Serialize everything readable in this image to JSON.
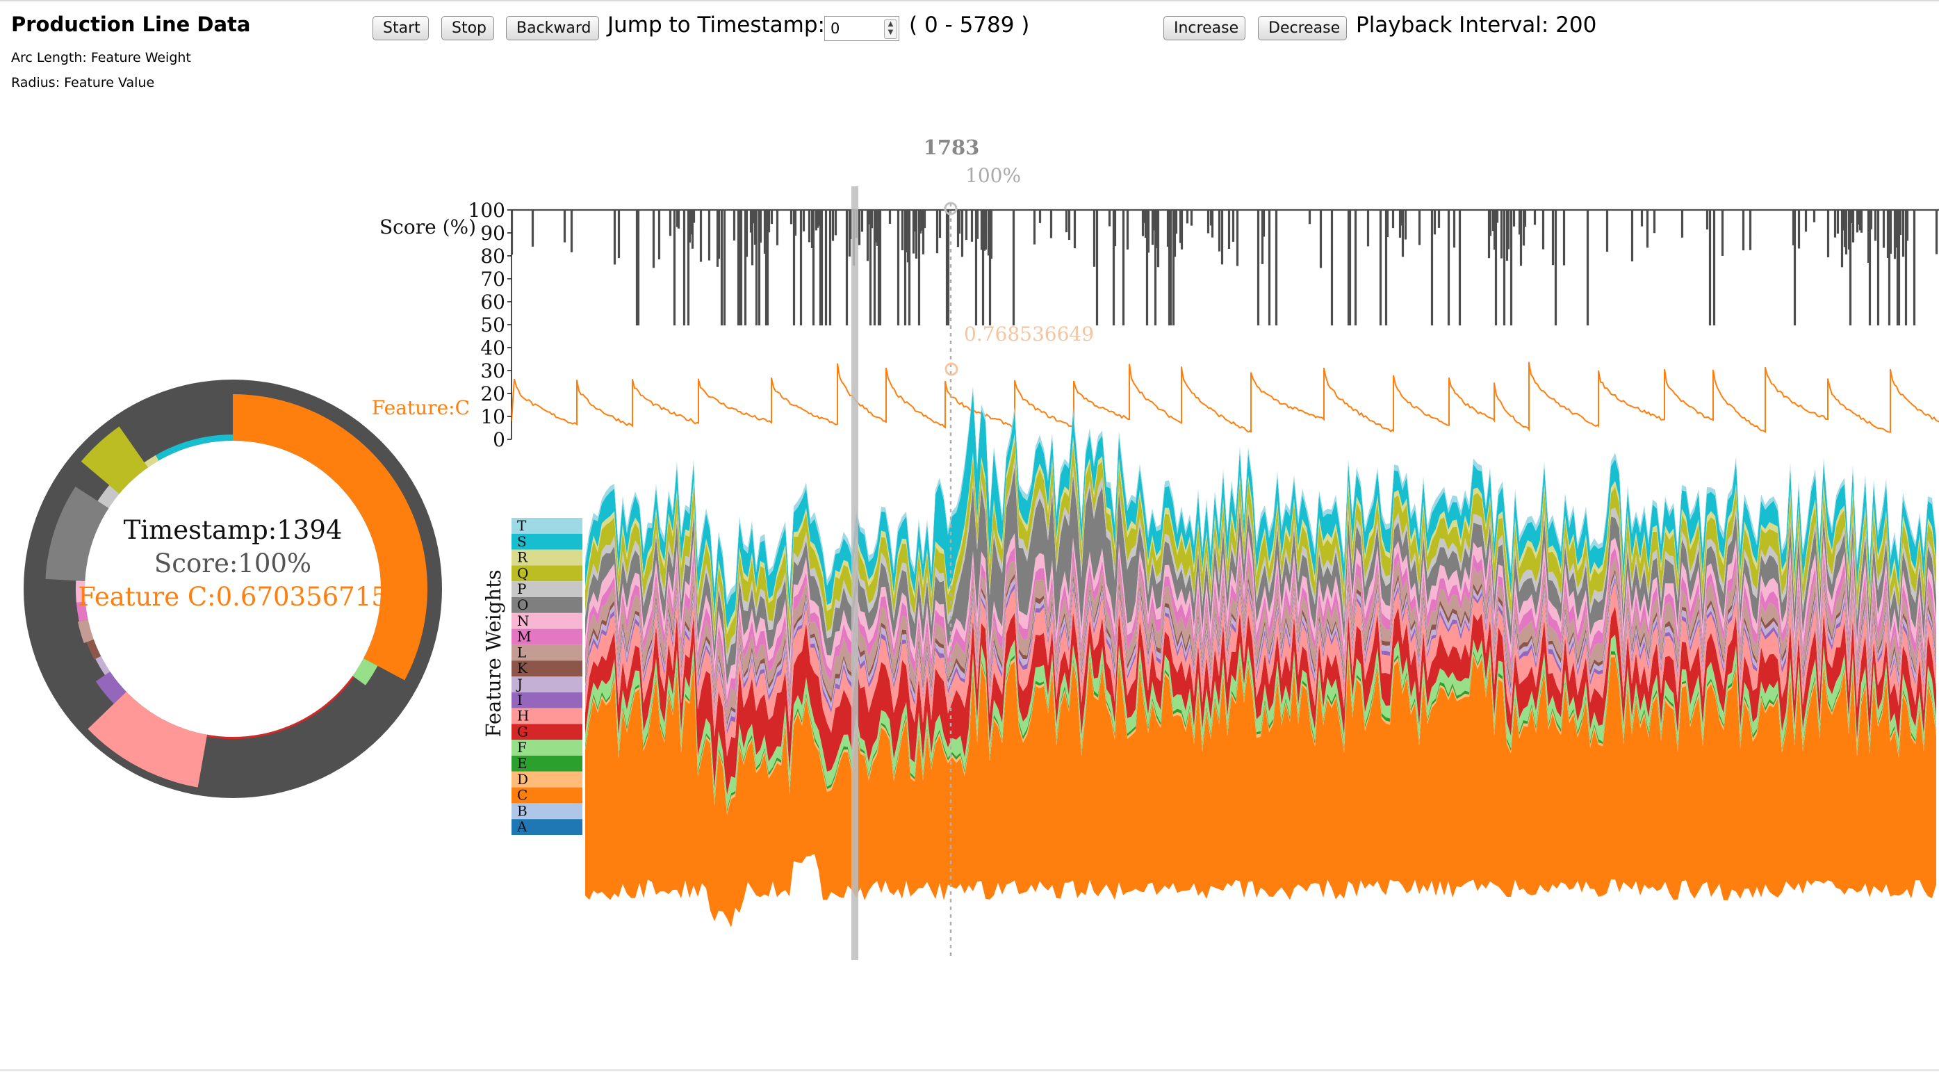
{
  "header": {
    "title": "Production Line Data",
    "arc_length_label": "Arc Length: Feature Weight",
    "radius_label": "Radius: Feature Value"
  },
  "controls": {
    "start_label": "Start",
    "stop_label": "Stop",
    "backward_label": "Backward",
    "jump_label": "Jump to Timestamp:",
    "jump_value": "0",
    "range_label": "( 0 - 5789 )",
    "increase_label": "Increase",
    "decrease_label": "Decrease",
    "interval_label": "Playback Interval: 200"
  },
  "donut": {
    "timestamp_text": "Timestamp:1394",
    "score_text": "Score:100%",
    "feature_text": "Feature C:0.670356715"
  },
  "hover": {
    "timestamp": "1783",
    "score": "100%",
    "feature_value": "0.768536649"
  },
  "score_chart": {
    "ylabel": "Score (%)",
    "feature_label": "Feature:C",
    "y_ticks": [
      "100",
      "90",
      "80",
      "70",
      "60",
      "50",
      "40",
      "30",
      "20",
      "10",
      "0"
    ]
  },
  "stream_chart": {
    "ylabel": "Feature Weights"
  },
  "legend": {
    "items": [
      {
        "letter": "T",
        "color": "#9edae5"
      },
      {
        "letter": "S",
        "color": "#17becf"
      },
      {
        "letter": "R",
        "color": "#dbdb8d"
      },
      {
        "letter": "Q",
        "color": "#bcbd22"
      },
      {
        "letter": "P",
        "color": "#c7c7c7"
      },
      {
        "letter": "O",
        "color": "#7f7f7f"
      },
      {
        "letter": "N",
        "color": "#f7b6d2"
      },
      {
        "letter": "M",
        "color": "#e377c2"
      },
      {
        "letter": "L",
        "color": "#c49c94"
      },
      {
        "letter": "K",
        "color": "#8c564b"
      },
      {
        "letter": "J",
        "color": "#c5b0d5"
      },
      {
        "letter": "I",
        "color": "#9467bd"
      },
      {
        "letter": "H",
        "color": "#ff9896"
      },
      {
        "letter": "G",
        "color": "#d62728"
      },
      {
        "letter": "F",
        "color": "#98df8a"
      },
      {
        "letter": "E",
        "color": "#2ca02c"
      },
      {
        "letter": "D",
        "color": "#ffbb78"
      },
      {
        "letter": "C",
        "color": "#ff7f0e"
      },
      {
        "letter": "B",
        "color": "#aec7e8"
      },
      {
        "letter": "A",
        "color": "#1f77b4"
      }
    ]
  },
  "colors": {
    "score_line": "#4d4d4d",
    "feature_line": "#ff7f0e",
    "donut_ring": "#505050",
    "hover_text": "#aaaaaa",
    "hover_feature_text": "#f5c5a0",
    "slider_bar": "#bdbdbd"
  },
  "chart_data": {
    "type": "area",
    "title": "Production Line Data",
    "x_range": [
      0,
      5789
    ],
    "score": {
      "ylabel": "Score (%)",
      "ylim": [
        0,
        100
      ],
      "typical_range": [
        50,
        100
      ],
      "selected_timestamp": 1783,
      "selected_value": 100
    },
    "feature_C": {
      "label": "Feature:C",
      "selected_timestamp": 1783,
      "selected_value": 0.768536649,
      "shape": "sawtooth",
      "approx_range": [
        3,
        30
      ]
    },
    "feature_weights": {
      "ylabel": "Feature Weights",
      "series": [
        "A",
        "B",
        "C",
        "D",
        "E",
        "F",
        "G",
        "H",
        "I",
        "J",
        "K",
        "L",
        "M",
        "N",
        "O",
        "P",
        "Q",
        "R",
        "S",
        "T"
      ],
      "dominant_series": "C"
    },
    "donut_at_timestamp_1394": {
      "score": 100,
      "feature_C_value": 0.670356715,
      "dominant_slice": "C"
    }
  }
}
